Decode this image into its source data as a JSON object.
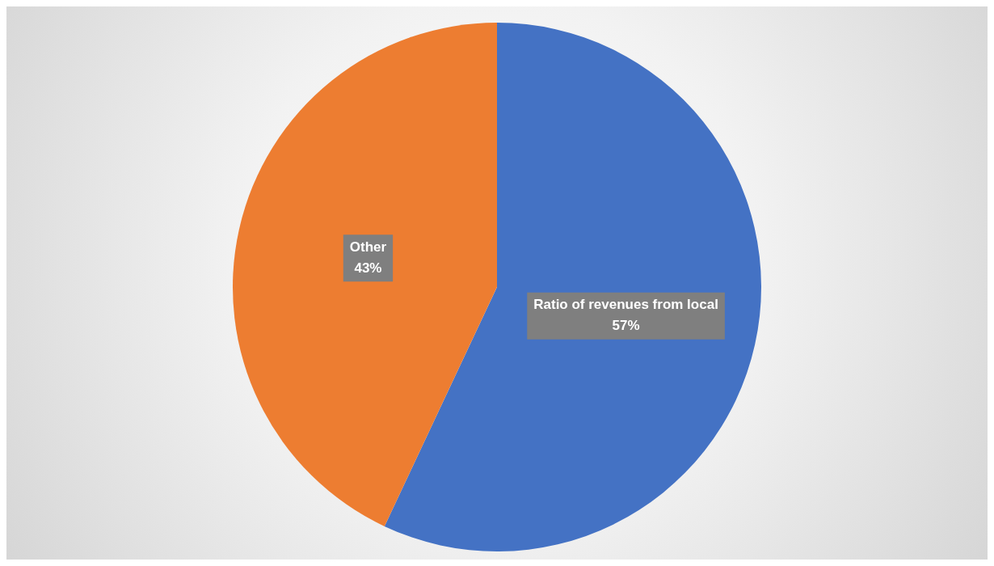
{
  "chart_data": {
    "type": "pie",
    "categories": [
      "Ratio of revenues from local",
      "Other"
    ],
    "values": [
      57,
      43
    ],
    "colors": [
      "#4472c4",
      "#ed7d31"
    ],
    "value_labels": [
      "57%",
      "43%"
    ],
    "legend": false
  }
}
